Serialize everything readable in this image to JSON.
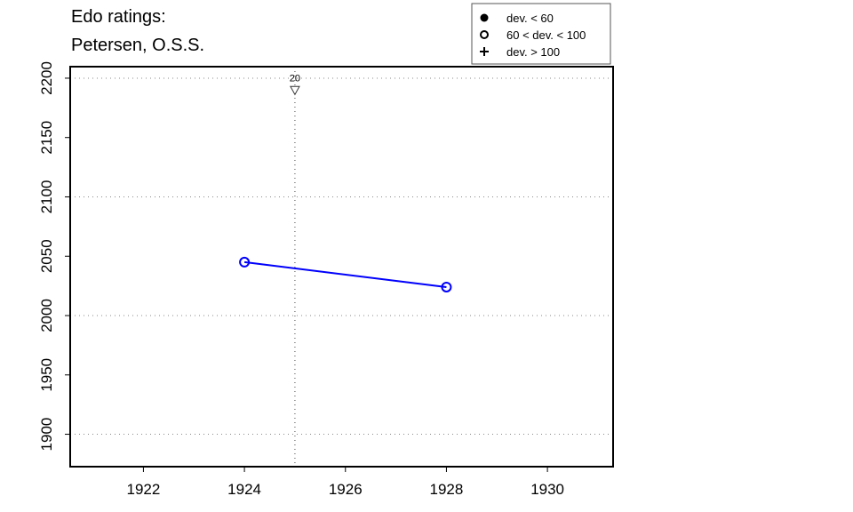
{
  "chart_data": {
    "type": "line",
    "title": [
      "Edo ratings:",
      "Petersen, O.S.S."
    ],
    "xlabel": "",
    "ylabel": "",
    "xlim": [
      1920.55,
      1931.3
    ],
    "ylim": [
      1872.7,
      2209.7
    ],
    "x_ticks": [
      1922,
      1924,
      1926,
      1928,
      1930
    ],
    "y_ticks": [
      1900,
      1950,
      2000,
      2050,
      2100,
      2150,
      2200
    ],
    "grid": {
      "y": [
        1900,
        2000,
        2100,
        2200
      ],
      "x": [
        1925
      ],
      "style": "dotted"
    },
    "series": [
      {
        "x": [
          1924,
          1928
        ],
        "y": [
          2045,
          2024
        ],
        "color": "#0000ff",
        "marker": "open-circle"
      }
    ],
    "annotations": [
      {
        "x": 1925,
        "y": 2190,
        "marker": "down-triangle",
        "label": "20"
      }
    ],
    "legend": {
      "position": "top-right",
      "entries": [
        {
          "symbol": "filled-circle",
          "label": "dev. < 60"
        },
        {
          "symbol": "open-circle",
          "label": "60 < dev. < 100"
        },
        {
          "symbol": "plus",
          "label": "dev. > 100"
        }
      ]
    }
  }
}
